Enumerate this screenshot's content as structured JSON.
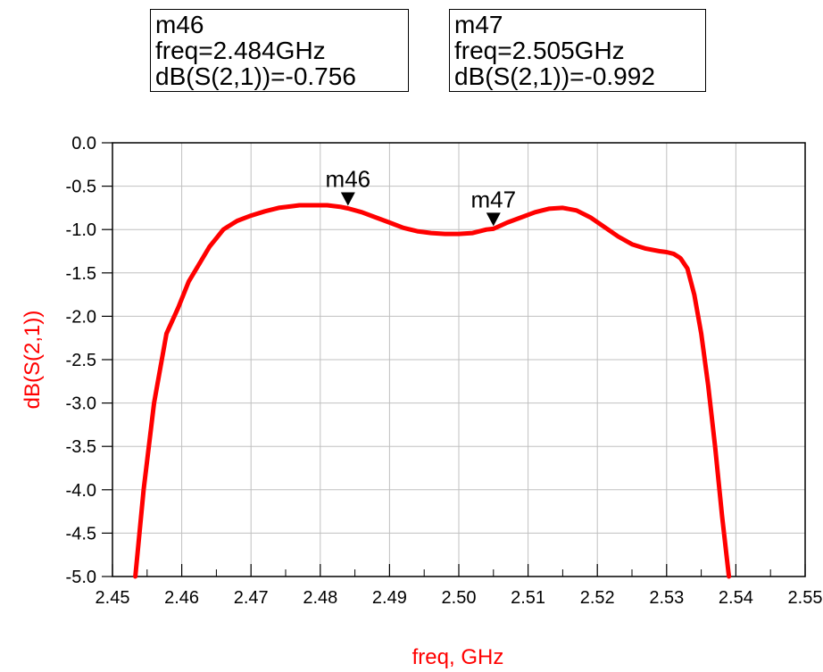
{
  "markers": [
    {
      "name": "m46",
      "freq_text": "freq=2.484GHz",
      "value_text": "dB(S(2,1))=-0.756",
      "freq": 2.484,
      "value": -0.756
    },
    {
      "name": "m47",
      "freq_text": "freq=2.505GHz",
      "value_text": "dB(S(2,1))=-0.992",
      "freq": 2.505,
      "value": -0.992
    }
  ],
  "chart_data": {
    "type": "line",
    "xlabel": "freq, GHz",
    "ylabel": "dB(S(2,1))",
    "xlim": [
      2.45,
      2.55
    ],
    "ylim": [
      -5.0,
      0.0
    ],
    "x_ticks": [
      "2.45",
      "2.46",
      "2.47",
      "2.48",
      "2.49",
      "2.50",
      "2.51",
      "2.52",
      "2.53",
      "2.54",
      "2.55"
    ],
    "y_ticks": [
      "0.0",
      "-0.5",
      "-1.0",
      "-1.5",
      "-2.0",
      "-2.5",
      "-3.0",
      "-3.5",
      "-4.0",
      "-4.5",
      "-5.0"
    ],
    "grid": true,
    "series_color": "#ff0000",
    "series": [
      {
        "x": [
          2.4533,
          2.4545,
          2.456,
          2.4578,
          2.4595,
          2.461,
          2.4625,
          2.464,
          2.465,
          2.466,
          2.467,
          2.468,
          2.47,
          2.472,
          2.474,
          2.476,
          2.477,
          2.479,
          2.481,
          2.483,
          2.484,
          2.486,
          2.488,
          2.49,
          2.492,
          2.494,
          2.496,
          2.498,
          2.5,
          2.502,
          2.504,
          2.505,
          2.507,
          2.509,
          2.511,
          2.513,
          2.515,
          2.517,
          2.519,
          2.521,
          2.523,
          2.525,
          2.527,
          2.529,
          2.53,
          2.531,
          2.532,
          2.533,
          2.534,
          2.535,
          2.536,
          2.537,
          2.538,
          2.539
        ],
        "y": [
          -5.0,
          -4.0,
          -3.0,
          -2.2,
          -1.9,
          -1.6,
          -1.4,
          -1.2,
          -1.1,
          -1.0,
          -0.95,
          -0.9,
          -0.84,
          -0.79,
          -0.75,
          -0.73,
          -0.72,
          -0.72,
          -0.72,
          -0.74,
          -0.756,
          -0.8,
          -0.86,
          -0.92,
          -0.98,
          -1.02,
          -1.04,
          -1.05,
          -1.05,
          -1.04,
          -1.0,
          -0.992,
          -0.92,
          -0.86,
          -0.8,
          -0.76,
          -0.75,
          -0.78,
          -0.86,
          -0.97,
          -1.08,
          -1.17,
          -1.22,
          -1.25,
          -1.26,
          -1.28,
          -1.33,
          -1.45,
          -1.75,
          -2.2,
          -2.8,
          -3.5,
          -4.3,
          -5.0
        ]
      }
    ]
  }
}
